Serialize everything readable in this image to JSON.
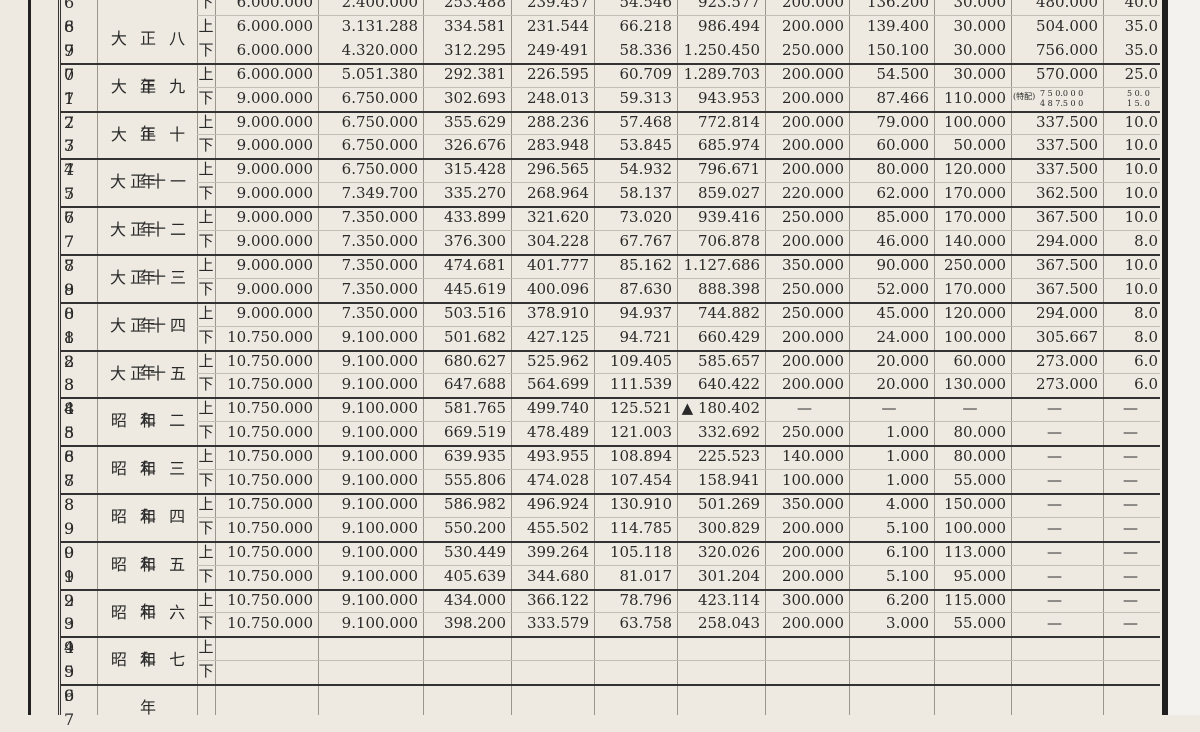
{
  "half_labels": [
    "上",
    "下"
  ],
  "groups": [
    {
      "row_nos": [
        "6 8",
        "6 9"
      ],
      "era": "",
      "partial_top": true,
      "rows": [
        {
          "half": "下",
          "vals": [
            "6.000.000",
            "2.400.000",
            "253.488",
            "239.457",
            "54.546",
            "923.577",
            "200.000",
            "136.200",
            "30.000",
            "480.000",
            "40.0"
          ]
        },
        {
          "half": "上",
          "vals": [
            "6.000.000",
            "3.131.288",
            "334.581",
            "231.544",
            "66.218",
            "986.494",
            "200.000",
            "139.400",
            "30.000",
            "504.000",
            "35.0"
          ]
        }
      ]
    },
    {
      "row_nos": [
        "7 0"
      ],
      "era": "大 正 八 年",
      "era_spans_prev": true,
      "rows": [
        {
          "half": "下",
          "vals": [
            "6.000.000",
            "4.320.000",
            "312.295",
            "249·491",
            "58.336",
            "1.250.450",
            "250.000",
            "150.100",
            "30.000",
            "756.000",
            "35.0"
          ]
        }
      ]
    },
    {
      "row_nos": [
        "7 1",
        "7 2"
      ],
      "era": "大 正 九 年",
      "rows": [
        {
          "half": "上",
          "vals": [
            "6.000.000",
            "5.051.380",
            "292.381",
            "226.595",
            "60.709",
            "1.289.703",
            "200.000",
            "54.500",
            "30.000",
            "570.000",
            "25.0"
          ]
        },
        {
          "half": "下",
          "vals": [
            "9.000.000",
            "6.750.000",
            "302.693",
            "248.013",
            "59.313",
            "943.953",
            "200.000",
            "87.466",
            "110.000",
            "",
            ""
          ]
        }
      ]
    },
    {
      "row_nos": [
        "7 3",
        "7 4"
      ],
      "era": "大 正 十 年",
      "rows": [
        {
          "half": "上",
          "vals": [
            "9.000.000",
            "6.750.000",
            "355.629",
            "288.236",
            "57.468",
            "772.814",
            "200.000",
            "79.000",
            "100.000",
            "337.500",
            "10.0"
          ]
        },
        {
          "half": "下",
          "vals": [
            "9.000.000",
            "6.750.000",
            "326.676",
            "283.948",
            "53.845",
            "685.974",
            "200.000",
            "60.000",
            "50.000",
            "337.500",
            "10.0"
          ]
        }
      ]
    },
    {
      "row_nos": [
        "7 5",
        "7 6"
      ],
      "era": "大正十一年",
      "rows": [
        {
          "half": "上",
          "vals": [
            "9.000.000",
            "6.750.000",
            "315.428",
            "296.565",
            "54.932",
            "796.671",
            "200.000",
            "80.000",
            "120.000",
            "337.500",
            "10.0"
          ]
        },
        {
          "half": "下",
          "vals": [
            "9.000.000",
            "7.349.700",
            "335.270",
            "268.964",
            "58.137",
            "859.027",
            "220.000",
            "62.000",
            "170.000",
            "362.500",
            "10.0"
          ]
        }
      ]
    },
    {
      "row_nos": [
        "7 7",
        "7 8"
      ],
      "era": "大正十二年",
      "rows": [
        {
          "half": "上",
          "vals": [
            "9.000.000",
            "7.350.000",
            "433.899",
            "321.620",
            "73.020",
            "939.416",
            "250.000",
            "85.000",
            "170.000",
            "367.500",
            "10.0"
          ]
        },
        {
          "half": "下",
          "vals": [
            "9.000.000",
            "7.350.000",
            "376.300",
            "304.228",
            "67.767",
            "706.878",
            "200.000",
            "46.000",
            "140.000",
            "294.000",
            "8.0"
          ]
        }
      ]
    },
    {
      "row_nos": [
        "7 9",
        "8 0"
      ],
      "era": "大正十三年",
      "rows": [
        {
          "half": "上",
          "vals": [
            "9.000.000",
            "7.350.000",
            "474.681",
            "401.777",
            "85.162",
            "1.127.686",
            "350.000",
            "90.000",
            "250.000",
            "367.500",
            "10.0"
          ]
        },
        {
          "half": "下",
          "vals": [
            "9.000.000",
            "7.350.000",
            "445.619",
            "400.096",
            "87.630",
            "888.398",
            "250.000",
            "52.000",
            "170.000",
            "367.500",
            "10.0"
          ]
        }
      ]
    },
    {
      "row_nos": [
        "8 1",
        "8 2"
      ],
      "era": "大正十四年",
      "rows": [
        {
          "half": "上",
          "vals": [
            "9.000.000",
            "7.350.000",
            "503.516",
            "378.910",
            "94.937",
            "744.882",
            "250.000",
            "45.000",
            "120.000",
            "294.000",
            "8.0"
          ]
        },
        {
          "half": "下",
          "vals": [
            "10.750.000",
            "9.100.000",
            "501.682",
            "427.125",
            "94.721",
            "660.429",
            "200.000",
            "24.000",
            "100.000",
            "305.667",
            "8.0"
          ]
        }
      ]
    },
    {
      "row_nos": [
        "8 3",
        "8 4"
      ],
      "era": "大正十五年",
      "rows": [
        {
          "half": "上",
          "vals": [
            "10.750.000",
            "9.100.000",
            "680.627",
            "525.962",
            "109.405",
            "585.657",
            "200.000",
            "20.000",
            "60.000",
            "273.000",
            "6.0"
          ]
        },
        {
          "half": "下",
          "vals": [
            "10.750.000",
            "9.100.000",
            "647.688",
            "564.699",
            "111.539",
            "640.422",
            "200.000",
            "20.000",
            "130.000",
            "273.000",
            "6.0"
          ]
        }
      ]
    },
    {
      "row_nos": [
        "8 5",
        "8 6"
      ],
      "era": "昭 和 二 年",
      "rows": [
        {
          "half": "上",
          "vals": [
            "10.750.000",
            "9.100.000",
            "581.765",
            "499.740",
            "125.521",
            "▲ 180.402",
            "—",
            "—",
            "—",
            "—",
            "—"
          ]
        },
        {
          "half": "下",
          "vals": [
            "10.750.000",
            "9.100.000",
            "669.519",
            "478.489",
            "121.003",
            "332.692",
            "250.000",
            "1.000",
            "80.000",
            "—",
            "—"
          ]
        }
      ]
    },
    {
      "row_nos": [
        "8 7",
        "8 8"
      ],
      "era": "昭 和 三 年",
      "rows": [
        {
          "half": "上",
          "vals": [
            "10.750.000",
            "9.100.000",
            "639.935",
            "493.955",
            "108.894",
            "225.523",
            "140.000",
            "1.000",
            "80.000",
            "—",
            "—"
          ]
        },
        {
          "half": "下",
          "vals": [
            "10.750.000",
            "9.100.000",
            "555.806",
            "474.028",
            "107.454",
            "158.941",
            "100.000",
            "1.000",
            "55.000",
            "—",
            "—"
          ]
        }
      ]
    },
    {
      "row_nos": [
        "8 9",
        "9 0"
      ],
      "era": "昭 和 四 年",
      "rows": [
        {
          "half": "上",
          "vals": [
            "10.750.000",
            "9.100.000",
            "586.982",
            "496.924",
            "130.910",
            "501.269",
            "350.000",
            "4.000",
            "150.000",
            "—",
            "—"
          ]
        },
        {
          "half": "下",
          "vals": [
            "10.750.000",
            "9.100.000",
            "550.200",
            "455.502",
            "114.785",
            "300.829",
            "200.000",
            "5.100",
            "100.000",
            "—",
            "—"
          ]
        }
      ]
    },
    {
      "row_nos": [
        "9 1",
        "9 2"
      ],
      "era": "昭 和 五 年",
      "rows": [
        {
          "half": "上",
          "vals": [
            "10.750.000",
            "9.100.000",
            "530.449",
            "399.264",
            "105.118",
            "320.026",
            "200.000",
            "6.100",
            "113.000",
            "—",
            "—"
          ]
        },
        {
          "half": "下",
          "vals": [
            "10.750.000",
            "9.100.000",
            "405.639",
            "344.680",
            "81.017",
            "301.204",
            "200.000",
            "5.100",
            "95.000",
            "—",
            "—"
          ]
        }
      ]
    },
    {
      "row_nos": [
        "9 3",
        "9 4"
      ],
      "era": "昭 和 六 年",
      "rows": [
        {
          "half": "上",
          "vals": [
            "10.750.000",
            "9.100.000",
            "434.000",
            "366.122",
            "78.796",
            "423.114",
            "300.000",
            "6.200",
            "115.000",
            "—",
            "—"
          ]
        },
        {
          "half": "下",
          "vals": [
            "10.750.000",
            "9.100.000",
            "398.200",
            "333.579",
            "63.758",
            "258.043",
            "200.000",
            "3.000",
            "55.000",
            "—",
            "—"
          ]
        }
      ]
    },
    {
      "row_nos": [
        "9 5",
        "9 6"
      ],
      "era": "昭 和 七 年",
      "rows": [
        {
          "half": "上",
          "vals": [
            "",
            "",
            "",
            "",
            "",
            "",
            "",
            "",
            "",
            "",
            ""
          ]
        },
        {
          "half": "下",
          "vals": [
            "",
            "",
            "",
            "",
            "",
            "",
            "",
            "",
            "",
            "",
            ""
          ]
        }
      ]
    },
    {
      "row_nos": [
        "9 7"
      ],
      "era": "",
      "partial_bottom": true,
      "rows": []
    }
  ],
  "special_note": {
    "label": "(特配)",
    "top": "7 5 0.0 0 0",
    "bottom": "4 8 7.5 0 0",
    "rate_top": "5 0. 0",
    "rate_bottom": "1 5. 0"
  }
}
